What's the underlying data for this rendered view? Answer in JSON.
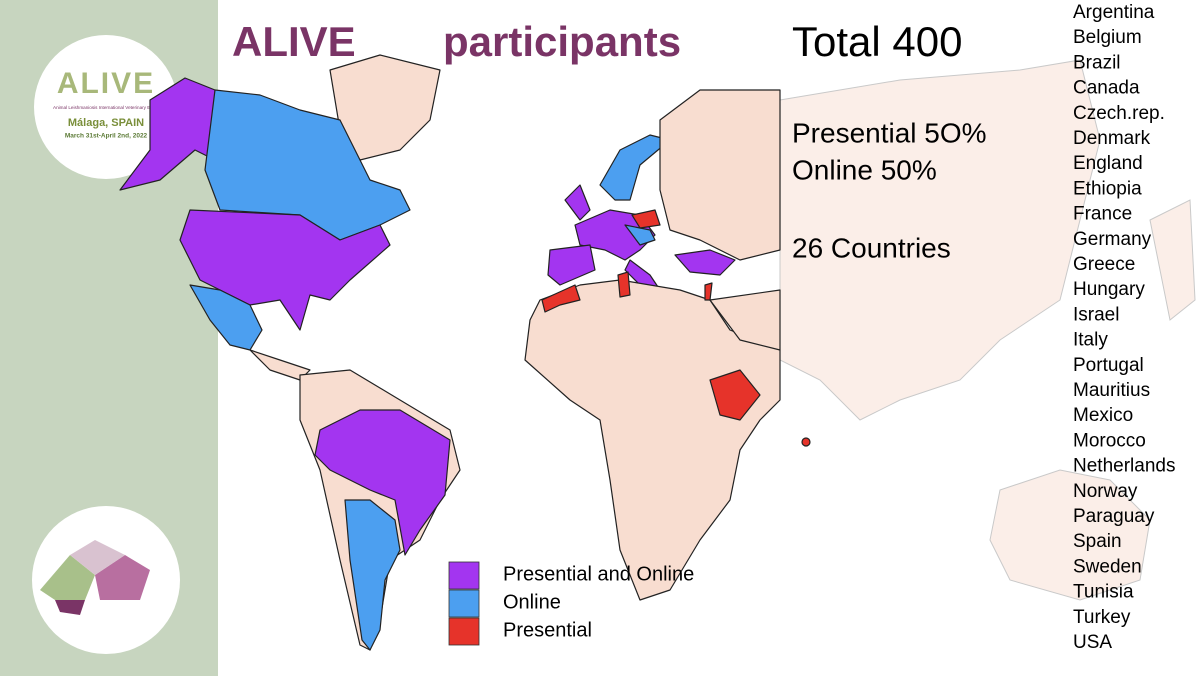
{
  "logo": {
    "title": "ALIVE",
    "subtitle": "Animal Leishmaniosis International Veterinary Event",
    "place": "Málaga, SPAIN",
    "dates": "March 31st-April 2nd, 2022"
  },
  "header": {
    "title": "ALIVE",
    "subtitle": "participants",
    "total": "Total 400"
  },
  "stats": [
    "Presential 5O%",
    "Online 50%",
    "26 Countries"
  ],
  "countries": [
    "Argentina",
    "Belgium",
    "Brazil",
    "Canada",
    "Czech.rep.",
    "Denmark",
    "England",
    "Ethiopia",
    "France",
    "Germany",
    "Greece",
    "Hungary",
    "Israel",
    "Italy",
    "Portugal",
    "Mauritius",
    "Mexico",
    "Morocco",
    "Netherlands",
    "Norway",
    "Paraguay",
    "Spain",
    "Sweden",
    "Tunisia",
    "Turkey",
    "USA"
  ],
  "legend": [
    {
      "label": "Presential and Online",
      "color": "#a335f0"
    },
    {
      "label": "Online",
      "color": "#4c9ff0"
    },
    {
      "label": "Presential",
      "color": "#e6332a"
    }
  ]
}
